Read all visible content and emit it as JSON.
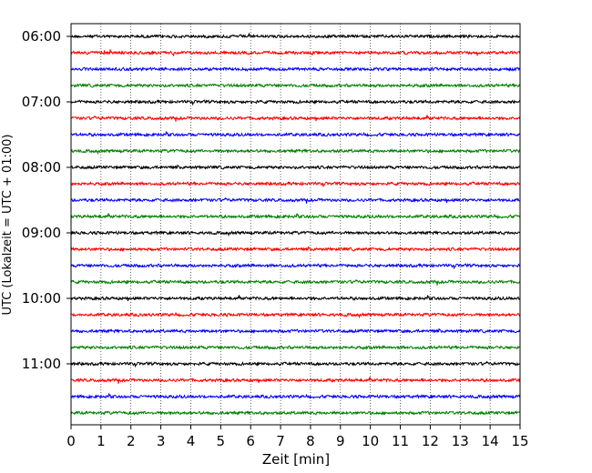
{
  "chart_data": {
    "type": "line",
    "title": "",
    "xlabel": "Zeit  [min]",
    "ylabel": "UTC (Lokalzeit = UTC + 01:00)",
    "xlim": [
      0,
      15
    ],
    "x_ticks": [
      "0",
      "1",
      "2",
      "3",
      "4",
      "5",
      "6",
      "7",
      "8",
      "9",
      "10",
      "11",
      "12",
      "13",
      "14",
      "15"
    ],
    "y_tick_labels": [
      "06:00",
      "07:00",
      "08:00",
      "09:00",
      "10:00",
      "11:00"
    ],
    "grid": "vertical dotted lines at each minute",
    "trace_interval_minutes": 15,
    "color_cycle": [
      "#000000",
      "#ff0000",
      "#0000ff",
      "#008000"
    ],
    "traces": [
      {
        "start": "06:00",
        "color": "#000000"
      },
      {
        "start": "06:15",
        "color": "#ff0000"
      },
      {
        "start": "06:30",
        "color": "#0000ff"
      },
      {
        "start": "06:45",
        "color": "#008000"
      },
      {
        "start": "07:00",
        "color": "#000000"
      },
      {
        "start": "07:15",
        "color": "#ff0000"
      },
      {
        "start": "07:30",
        "color": "#0000ff"
      },
      {
        "start": "07:45",
        "color": "#008000"
      },
      {
        "start": "08:00",
        "color": "#000000"
      },
      {
        "start": "08:15",
        "color": "#ff0000"
      },
      {
        "start": "08:30",
        "color": "#0000ff"
      },
      {
        "start": "08:45",
        "color": "#008000"
      },
      {
        "start": "09:00",
        "color": "#000000"
      },
      {
        "start": "09:15",
        "color": "#ff0000"
      },
      {
        "start": "09:30",
        "color": "#0000ff"
      },
      {
        "start": "09:45",
        "color": "#008000"
      },
      {
        "start": "10:00",
        "color": "#000000"
      },
      {
        "start": "10:15",
        "color": "#ff0000"
      },
      {
        "start": "10:30",
        "color": "#0000ff"
      },
      {
        "start": "10:45",
        "color": "#008000"
      },
      {
        "start": "11:00",
        "color": "#000000"
      },
      {
        "start": "11:15",
        "color": "#ff0000"
      },
      {
        "start": "11:30",
        "color": "#0000ff"
      },
      {
        "start": "11:45",
        "color": "#008000"
      }
    ]
  }
}
